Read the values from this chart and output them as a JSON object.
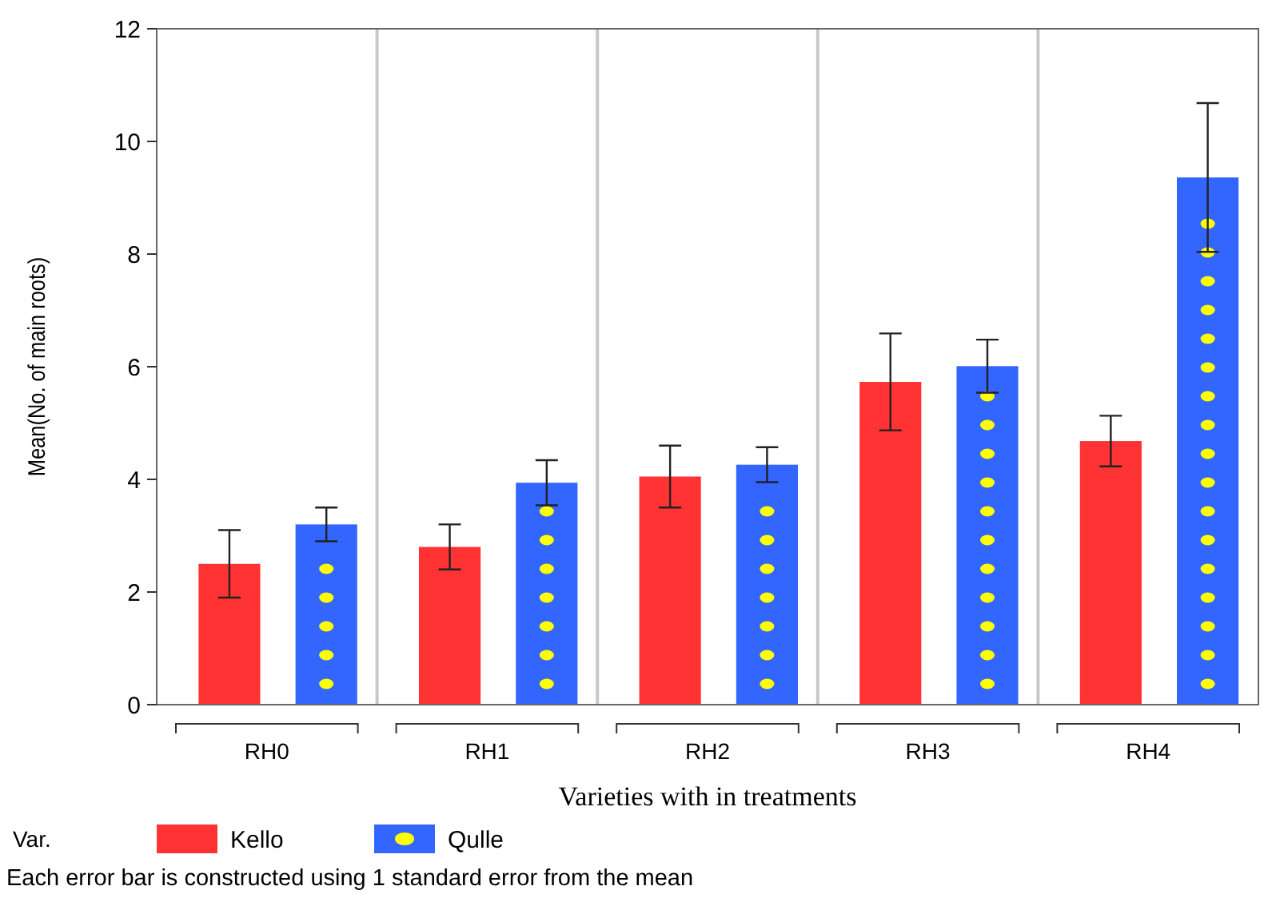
{
  "chart_data": {
    "type": "bar",
    "xlabel": "Varieties with in treatments",
    "ylabel": "Mean(No. of main roots)",
    "legend_title": "Var.",
    "categories": [
      "RH0",
      "RH1",
      "RH2",
      "RH3",
      "RH4"
    ],
    "series": [
      {
        "name": "Kello",
        "color": "#ff3333",
        "values": [
          2.5,
          2.8,
          4.05,
          5.73,
          4.68
        ],
        "errors": [
          0.6,
          0.4,
          0.55,
          0.86,
          0.45
        ]
      },
      {
        "name": "Qulle",
        "color": "#3366ff",
        "values": [
          3.2,
          3.94,
          4.26,
          6.01,
          9.36
        ],
        "errors": [
          0.3,
          0.4,
          0.31,
          0.47,
          1.32
        ]
      }
    ],
    "ylim": [
      0,
      12
    ],
    "yticks": [
      0,
      2,
      4,
      6,
      8,
      10,
      12
    ],
    "grid": "x",
    "legend": "bottom",
    "annotations": [
      "Each error bar is constructed using 1 standard error from the mean"
    ]
  }
}
